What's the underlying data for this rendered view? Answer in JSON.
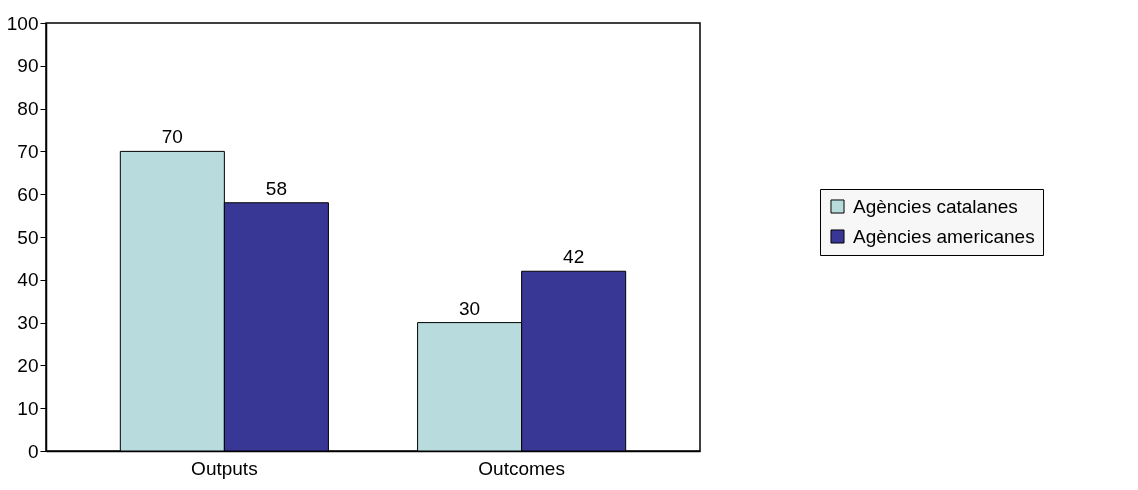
{
  "chart_data": {
    "type": "bar",
    "categories": [
      "Outputs",
      "Outcomes"
    ],
    "series": [
      {
        "name": "Agències catalanes",
        "color": "#b8dcdd",
        "values": [
          70,
          30
        ]
      },
      {
        "name": "Agències americanes",
        "color": "#383795",
        "values": [
          58,
          42
        ]
      }
    ],
    "ylim": [
      0,
      100
    ],
    "yticks": [
      0,
      10,
      20,
      30,
      40,
      50,
      60,
      70,
      80,
      90,
      100
    ],
    "data_labels": true,
    "legend": "right",
    "grid": false
  }
}
